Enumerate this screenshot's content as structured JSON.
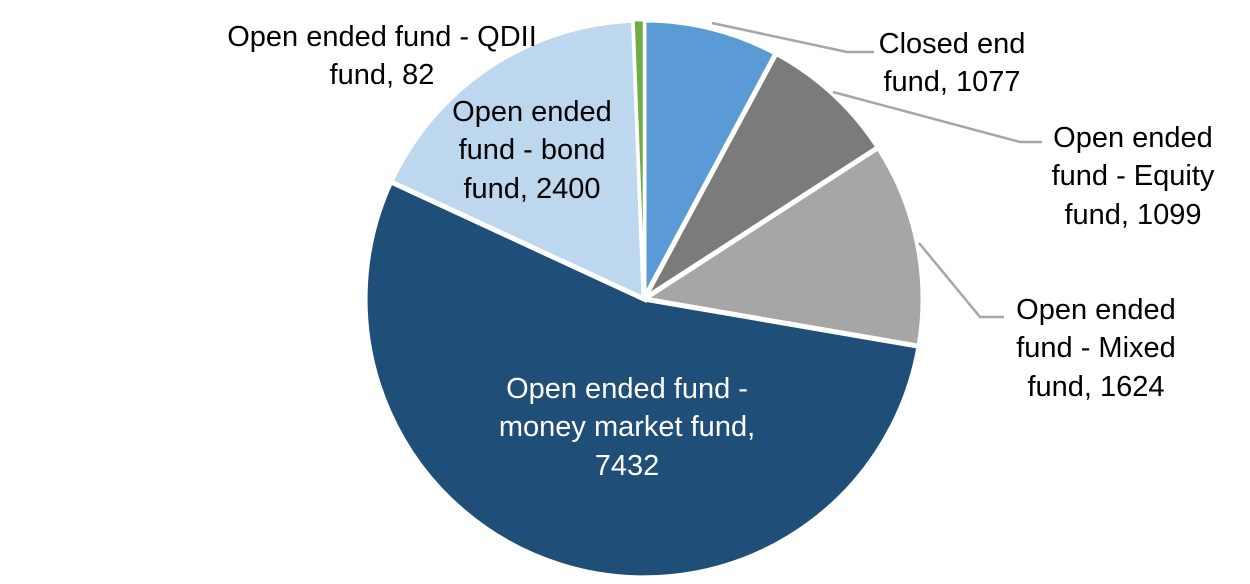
{
  "chart_data": {
    "type": "pie",
    "title": "",
    "legend_position": "none",
    "data_labels": "category-and-value",
    "start_angle_deg": 0,
    "direction": "clockwise",
    "total": 13714,
    "slices": [
      {
        "label": "Closed end fund",
        "value": 1077,
        "color": "#5B9BD5"
      },
      {
        "label": "Open ended fund - Equity fund",
        "value": 1099,
        "color": "#7B7B7B"
      },
      {
        "label": "Open ended fund - Mixed fund",
        "value": 1624,
        "color": "#A6A6A6"
      },
      {
        "label": "Open ended fund - money market fund",
        "value": 7432,
        "color": "#1F4E79"
      },
      {
        "label": "Open ended fund - bond fund",
        "value": 2400,
        "color": "#BDD7EE"
      },
      {
        "label": "Open ended fund - QDII fund",
        "value": 82,
        "color": "#70AD47"
      }
    ]
  },
  "labels": {
    "closed_end": {
      "text": "Closed end\nfund, 1077"
    },
    "equity": {
      "text": "Open ended\nfund - Equity\nfund, 1099"
    },
    "mixed": {
      "text": "Open ended\nfund - Mixed\nfund, 1624"
    },
    "qdii": {
      "text": "Open ended fund - QDII\nfund, 82"
    },
    "bond": {
      "text": "Open ended\nfund - bond\nfund, 2400"
    },
    "money_market": {
      "text": "Open ended fund -\nmoney market fund,\n7432"
    }
  },
  "colors": {
    "background": "#FFFFFF",
    "leader_line": "#A6A6A6",
    "slice_border": "#FFFFFF",
    "label_text": "#000000",
    "label_text_on_dark": "#FFFFFF"
  }
}
